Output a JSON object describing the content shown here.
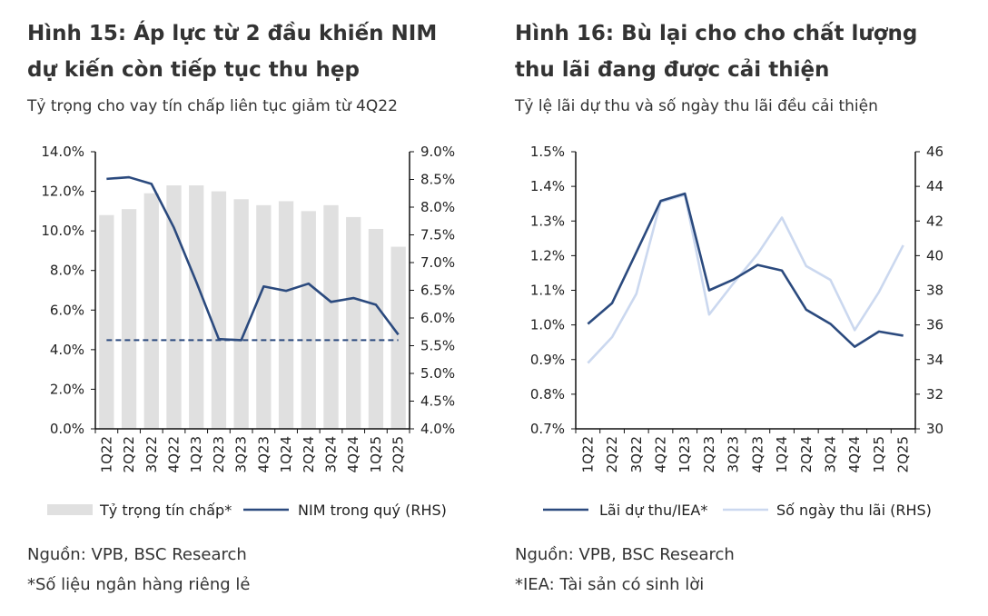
{
  "charts_text": [
    {
      "title_line1": "Hình 15:  Áp lực từ 2 đầu khiến NIM",
      "title_line2": "dự kiến còn tiếp tục thu hẹp",
      "subtitle": "Tỷ trọng cho vay tín chấp liên tục giảm từ 4Q22",
      "source": "Nguồn: VPB, BSC Research",
      "note": "*Số liệu ngân hàng riêng lẻ"
    },
    {
      "title_line1": "Hình 16: Bù lại cho cho chất lượng",
      "title_line2": "thu lãi đang được cải thiện",
      "subtitle": "Tỷ lệ lãi dự thu và số ngày thu lãi đều cải thiện",
      "source": "Nguồn: VPB, BSC Research",
      "note": "*IEA: Tài sản có sinh lời"
    }
  ],
  "chart_data": [
    {
      "type": "bar+line",
      "categories": [
        "1Q22",
        "2Q22",
        "3Q22",
        "4Q22",
        "1Q23",
        "2Q23",
        "3Q23",
        "4Q23",
        "1Q24",
        "2Q24",
        "3Q24",
        "4Q24",
        "1Q25",
        "2Q25"
      ],
      "ylim": [
        0,
        14
      ],
      "yticks": [
        "0.0%",
        "2.0%",
        "4.0%",
        "6.0%",
        "8.0%",
        "10.0%",
        "12.0%",
        "14.0%"
      ],
      "y2lim": [
        4,
        9
      ],
      "y2ticks": [
        "4.0%",
        "4.5%",
        "5.0%",
        "5.5%",
        "6.0%",
        "6.5%",
        "7.0%",
        "7.5%",
        "8.0%",
        "8.5%",
        "9.0%"
      ],
      "series": [
        {
          "name": "Tỷ trọng tín chấp*",
          "type": "bar",
          "axis": "left",
          "color": "#e0e0e0",
          "values": [
            10.8,
            11.1,
            11.9,
            12.3,
            12.3,
            12.0,
            11.6,
            11.3,
            11.5,
            11.0,
            11.3,
            10.7,
            10.1,
            9.2
          ]
        },
        {
          "name": "NIM trong quý (RHS)",
          "type": "line",
          "axis": "right",
          "color": "#2b4a7e",
          "values": [
            8.51,
            8.54,
            8.42,
            7.63,
            6.65,
            5.62,
            5.6,
            6.57,
            6.49,
            6.62,
            6.29,
            6.36,
            6.24,
            5.7
          ]
        }
      ],
      "reference_line": {
        "axis": "right",
        "value": 5.6,
        "style": "dashed",
        "color": "#2b4a7e"
      },
      "legend": "bottom",
      "grid": false
    },
    {
      "type": "line",
      "categories": [
        "1Q22",
        "2Q22",
        "3Q22",
        "4Q22",
        "1Q23",
        "2Q23",
        "3Q23",
        "4Q23",
        "1Q24",
        "2Q24",
        "3Q24",
        "4Q24",
        "1Q25",
        "2Q25"
      ],
      "ylim": [
        0.7,
        1.5
      ],
      "yticks": [
        "0.7%",
        "0.8%",
        "0.9%",
        "1.0%",
        "1.1%",
        "1.2%",
        "1.3%",
        "1.4%",
        "1.5%"
      ],
      "y2lim": [
        30,
        46
      ],
      "y2ticks": [
        "30",
        "32",
        "34",
        "36",
        "38",
        "40",
        "42",
        "44",
        "46"
      ],
      "series": [
        {
          "name": "Lãi dự thu/IEA*",
          "type": "line",
          "axis": "left",
          "color": "#2b4a7e",
          "values": [
            1.003,
            1.063,
            1.21,
            1.358,
            1.379,
            1.1,
            1.131,
            1.173,
            1.157,
            1.044,
            1.003,
            0.937,
            0.981,
            0.969
          ]
        },
        {
          "name": "Số ngày thu lãi (RHS)",
          "type": "line",
          "axis": "right",
          "color": "#cbd8ef",
          "values": [
            33.8,
            35.3,
            37.8,
            43.1,
            43.5,
            36.6,
            38.4,
            40.1,
            42.2,
            39.4,
            38.6,
            35.7,
            37.9,
            40.6
          ]
        }
      ],
      "legend": "bottom",
      "grid": false
    }
  ]
}
